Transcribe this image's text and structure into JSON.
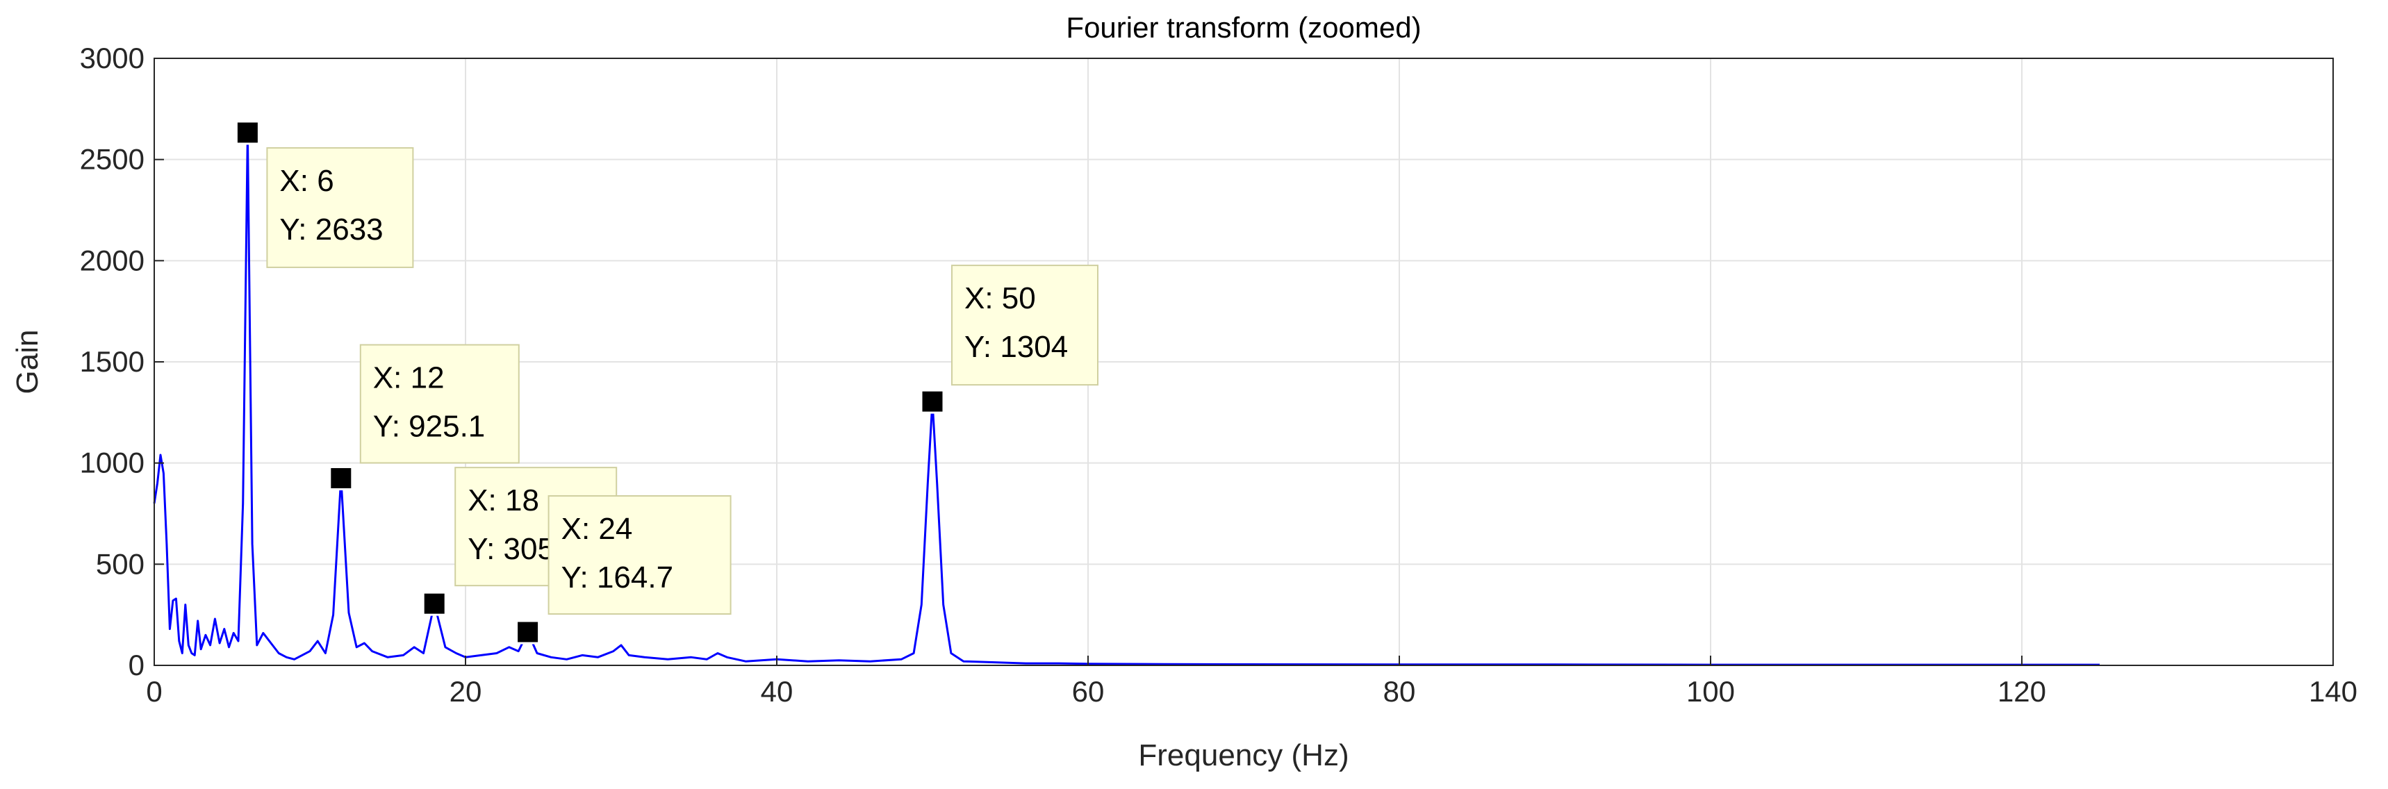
{
  "chart_data": {
    "type": "line",
    "title": "Fourier transform (zoomed)",
    "xlabel": "Frequency (Hz)",
    "ylabel": "Gain",
    "xlim": [
      0,
      140
    ],
    "ylim": [
      0,
      3000
    ],
    "xticks": [
      0,
      20,
      40,
      60,
      80,
      100,
      120,
      140
    ],
    "yticks": [
      0,
      500,
      1000,
      1500,
      2000,
      2500,
      3000
    ],
    "grid": true,
    "line_color": "#0000ff",
    "series": [
      {
        "x": [
          0,
          0.2,
          0.4,
          0.6,
          0.8,
          1.0,
          1.2,
          1.4,
          1.6,
          1.8,
          2.0,
          2.2,
          2.4,
          2.6,
          2.8,
          3.0,
          3.3,
          3.6,
          3.9,
          4.2,
          4.5,
          4.8,
          5.1,
          5.4,
          5.7,
          6.0,
          6.3,
          6.6,
          7.0,
          7.5,
          8.0,
          8.5,
          9.0,
          9.5,
          10.0,
          10.5,
          11.0,
          11.5,
          12.0,
          12.5,
          13.0,
          13.5,
          14.0,
          15.0,
          16.0,
          16.7,
          17.3,
          18.0,
          18.7,
          19.4,
          20.0,
          21.0,
          22.0,
          22.8,
          23.4,
          24.0,
          24.6,
          25.5,
          26.5,
          27.5,
          28.5,
          29.5,
          30.0,
          30.5,
          31.5,
          33.0,
          34.5,
          35.5,
          36.2,
          36.8,
          38.0,
          40.0,
          42.0,
          44.0,
          46.0,
          48.0,
          48.8,
          49.3,
          49.7,
          50.0,
          50.3,
          50.7,
          51.2,
          52.0,
          54.0,
          56.0,
          58.0,
          60.0,
          65.0,
          70.0,
          80.0,
          90.0,
          100.0,
          110.0,
          120.0,
          125.0
        ],
        "y": [
          800,
          900,
          1040,
          950,
          600,
          180,
          320,
          330,
          120,
          60,
          300,
          100,
          60,
          50,
          220,
          80,
          150,
          100,
          230,
          110,
          180,
          90,
          160,
          120,
          800,
          2633,
          600,
          100,
          160,
          110,
          60,
          40,
          30,
          50,
          70,
          120,
          60,
          250,
          925.1,
          260,
          90,
          110,
          70,
          40,
          50,
          90,
          60,
          305,
          90,
          60,
          40,
          50,
          60,
          90,
          70,
          164.7,
          60,
          40,
          30,
          50,
          40,
          70,
          100,
          50,
          40,
          30,
          40,
          30,
          60,
          40,
          20,
          30,
          20,
          25,
          20,
          30,
          60,
          300,
          900,
          1304,
          900,
          300,
          60,
          20,
          15,
          10,
          10,
          8,
          6,
          5,
          4,
          4,
          3,
          3,
          3,
          3
        ]
      }
    ],
    "datatips": [
      {
        "x": 6,
        "y": 2633,
        "x_text": "X: 6",
        "y_text": "Y: 2633"
      },
      {
        "x": 12,
        "y": 925.1,
        "x_text": "X: 12",
        "y_text": "Y: 925.1"
      },
      {
        "x": 18,
        "y": 305,
        "x_text": "X: 18",
        "y_text": "Y: 305"
      },
      {
        "x": 24,
        "y": 164.7,
        "x_text": "X: 24",
        "y_text": "Y: 164.7"
      },
      {
        "x": 50,
        "y": 1304,
        "x_text": "X: 50",
        "y_text": "Y: 1304"
      }
    ]
  }
}
